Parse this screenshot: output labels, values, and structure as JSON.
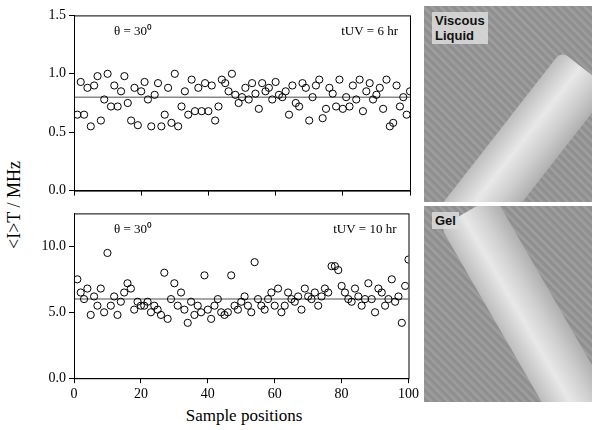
{
  "ylabel": "<I>T / MHz",
  "xlabel": "Sample positions",
  "images": [
    {
      "label": "Viscous Liquid"
    },
    {
      "label": "Gel"
    }
  ],
  "chart_data": [
    {
      "type": "scatter",
      "annotations": [
        "θ = 30⁰",
        "tUV = 6 hr"
      ],
      "x": [
        1,
        2,
        3,
        4,
        5,
        6,
        7,
        8,
        9,
        10,
        11,
        12,
        13,
        14,
        15,
        16,
        17,
        18,
        19,
        20,
        21,
        22,
        23,
        24,
        25,
        26,
        27,
        28,
        29,
        30,
        31,
        32,
        33,
        34,
        35,
        36,
        37,
        38,
        39,
        40,
        41,
        42,
        43,
        44,
        45,
        46,
        47,
        48,
        49,
        50,
        51,
        52,
        53,
        54,
        55,
        56,
        57,
        58,
        59,
        60,
        61,
        62,
        63,
        64,
        65,
        66,
        67,
        68,
        69,
        70,
        71,
        72,
        73,
        74,
        75,
        76,
        77,
        78,
        79,
        80,
        81,
        82,
        83,
        84,
        85,
        86,
        87,
        88,
        89,
        90,
        91,
        92,
        93,
        94,
        95,
        96,
        97,
        98,
        99,
        100
      ],
      "values": [
        0.65,
        0.93,
        0.65,
        0.88,
        0.55,
        0.9,
        0.98,
        0.6,
        0.78,
        1.0,
        0.72,
        0.9,
        0.72,
        0.85,
        0.98,
        0.75,
        0.6,
        0.88,
        0.56,
        0.85,
        0.93,
        0.78,
        0.55,
        0.82,
        0.92,
        0.55,
        0.65,
        0.88,
        0.58,
        1.0,
        0.55,
        0.72,
        0.85,
        0.65,
        0.95,
        0.68,
        0.88,
        0.68,
        0.92,
        0.68,
        0.9,
        0.6,
        0.72,
        0.95,
        0.92,
        0.85,
        1.0,
        0.82,
        0.75,
        0.8,
        0.88,
        0.78,
        0.92,
        0.83,
        0.7,
        0.92,
        0.85,
        0.88,
        0.78,
        0.93,
        0.82,
        0.8,
        0.85,
        0.65,
        0.9,
        0.75,
        0.72,
        0.92,
        0.88,
        0.6,
        0.8,
        0.9,
        0.95,
        0.62,
        0.7,
        0.88,
        0.83,
        0.72,
        0.95,
        0.7,
        0.8,
        0.72,
        0.9,
        0.78,
        0.95,
        0.68,
        0.85,
        0.92,
        0.78,
        0.82,
        0.88,
        0.7,
        0.95,
        0.55,
        0.58,
        0.9,
        0.72,
        0.8,
        0.65,
        0.85
      ],
      "color": "#000000",
      "marker": "circle",
      "average": 0.8,
      "xlim": [
        0,
        100
      ],
      "xticks": [
        0,
        20,
        40,
        60,
        80,
        100
      ],
      "ylim": [
        0,
        1.5
      ],
      "yticks": [
        {
          "value": 0,
          "label": "0.0"
        },
        {
          "value": 0.5,
          "label": "0.5"
        },
        {
          "value": 1,
          "label": "1.0"
        },
        {
          "value": 1.5,
          "label": "1.5"
        }
      ],
      "tick_labels": "y",
      "grid": false
    },
    {
      "type": "scatter",
      "annotations": [
        "θ = 30⁰",
        "tUV = 10 hr"
      ],
      "x": [
        1,
        2,
        3,
        4,
        5,
        6,
        7,
        8,
        9,
        10,
        11,
        12,
        13,
        14,
        15,
        16,
        17,
        18,
        19,
        20,
        21,
        22,
        23,
        24,
        25,
        26,
        27,
        28,
        29,
        30,
        31,
        32,
        33,
        34,
        35,
        36,
        37,
        38,
        39,
        40,
        41,
        42,
        43,
        44,
        45,
        46,
        47,
        48,
        49,
        50,
        51,
        52,
        53,
        54,
        55,
        56,
        57,
        58,
        59,
        60,
        61,
        62,
        63,
        64,
        65,
        66,
        67,
        68,
        69,
        70,
        71,
        72,
        73,
        74,
        75,
        76,
        77,
        78,
        79,
        80,
        81,
        82,
        83,
        84,
        85,
        86,
        87,
        88,
        89,
        90,
        91,
        92,
        93,
        94,
        95,
        96,
        97,
        98,
        99,
        100
      ],
      "values": [
        7.5,
        6.5,
        6.0,
        6.8,
        4.8,
        6.2,
        5.5,
        6.8,
        5.0,
        9.5,
        5.5,
        6.2,
        4.8,
        5.8,
        6.5,
        7.2,
        6.8,
        5.2,
        5.8,
        5.5,
        5.5,
        5.8,
        5.0,
        5.5,
        5.2,
        4.8,
        8.0,
        4.5,
        6.0,
        7.2,
        5.5,
        6.5,
        5.2,
        4.2,
        5.8,
        4.8,
        5.5,
        5.0,
        7.8,
        5.2,
        4.5,
        5.5,
        6.0,
        5.0,
        4.8,
        5.0,
        7.8,
        5.5,
        5.2,
        5.8,
        6.2,
        5.5,
        5.0,
        8.8,
        6.0,
        5.5,
        5.2,
        6.0,
        6.5,
        5.5,
        6.8,
        5.0,
        5.5,
        6.5,
        6.0,
        5.8,
        6.2,
        5.2,
        6.8,
        6.2,
        6.0,
        6.5,
        5.5,
        6.2,
        6.8,
        6.5,
        8.5,
        8.5,
        8.2,
        7.0,
        6.5,
        6.0,
        5.8,
        6.8,
        6.2,
        5.5,
        6.0,
        7.2,
        6.0,
        5.0,
        6.8,
        6.5,
        5.5,
        6.0,
        7.5,
        5.8,
        6.2,
        4.2,
        7.0,
        9.0
      ],
      "color": "#000000",
      "marker": "circle",
      "average": 6.0,
      "xlim": [
        0,
        100
      ],
      "xticks": [
        0,
        20,
        40,
        60,
        80,
        100
      ],
      "ylim": [
        0,
        12.5
      ],
      "yticks": [
        {
          "value": 0,
          "label": "0.0"
        },
        {
          "value": 5,
          "label": "5.0"
        },
        {
          "value": 10,
          "label": "10.0"
        }
      ],
      "grid": false
    }
  ]
}
